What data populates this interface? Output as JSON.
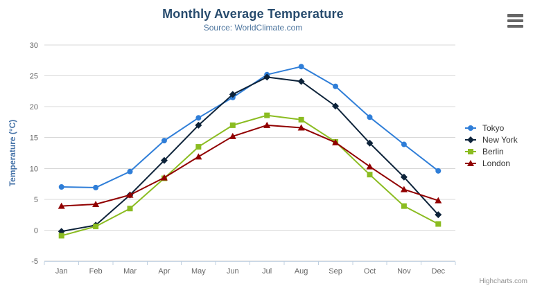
{
  "chart_data": {
    "type": "line",
    "title": "Monthly Average Temperature",
    "subtitle": "Source: WorldClimate.com",
    "xlabel": "",
    "ylabel": "Temperature (°C)",
    "categories": [
      "Jan",
      "Feb",
      "Mar",
      "Apr",
      "May",
      "Jun",
      "Jul",
      "Aug",
      "Sep",
      "Oct",
      "Nov",
      "Dec"
    ],
    "ylim": [
      -5,
      30
    ],
    "yticks": [
      -5,
      0,
      5,
      10,
      15,
      20,
      25,
      30
    ],
    "grid": "horizontal",
    "legend_position": "right",
    "series": [
      {
        "name": "Tokyo",
        "marker": "circle",
        "color": "#2f7ed8",
        "values": [
          7.0,
          6.9,
          9.5,
          14.5,
          18.2,
          21.5,
          25.2,
          26.5,
          23.3,
          18.3,
          13.9,
          9.6
        ]
      },
      {
        "name": "New York",
        "marker": "diamond",
        "color": "#0d233a",
        "values": [
          -0.2,
          0.8,
          5.7,
          11.3,
          17.0,
          22.0,
          24.8,
          24.1,
          20.1,
          14.1,
          8.6,
          2.5
        ]
      },
      {
        "name": "Berlin",
        "marker": "square",
        "color": "#8bbc21",
        "values": [
          -0.9,
          0.6,
          3.5,
          8.4,
          13.5,
          17.0,
          18.6,
          17.9,
          14.3,
          9.0,
          3.9,
          1.0
        ]
      },
      {
        "name": "London",
        "marker": "triangle",
        "color": "#910000",
        "values": [
          3.9,
          4.2,
          5.7,
          8.5,
          11.9,
          15.2,
          17.0,
          16.6,
          14.2,
          10.3,
          6.6,
          4.8
        ]
      }
    ],
    "colors": {
      "title": "#274b6d",
      "subtitle": "#4d759e",
      "axis_title": "#4572a7",
      "tick_label": "#666666",
      "grid_line": "#d8d8d8",
      "axis_line": "#c0d0e0",
      "legend_text": "#333333",
      "menu_icon": "#666666",
      "credits_text": "#909090"
    }
  },
  "credits": {
    "text": "Highcharts.com"
  }
}
